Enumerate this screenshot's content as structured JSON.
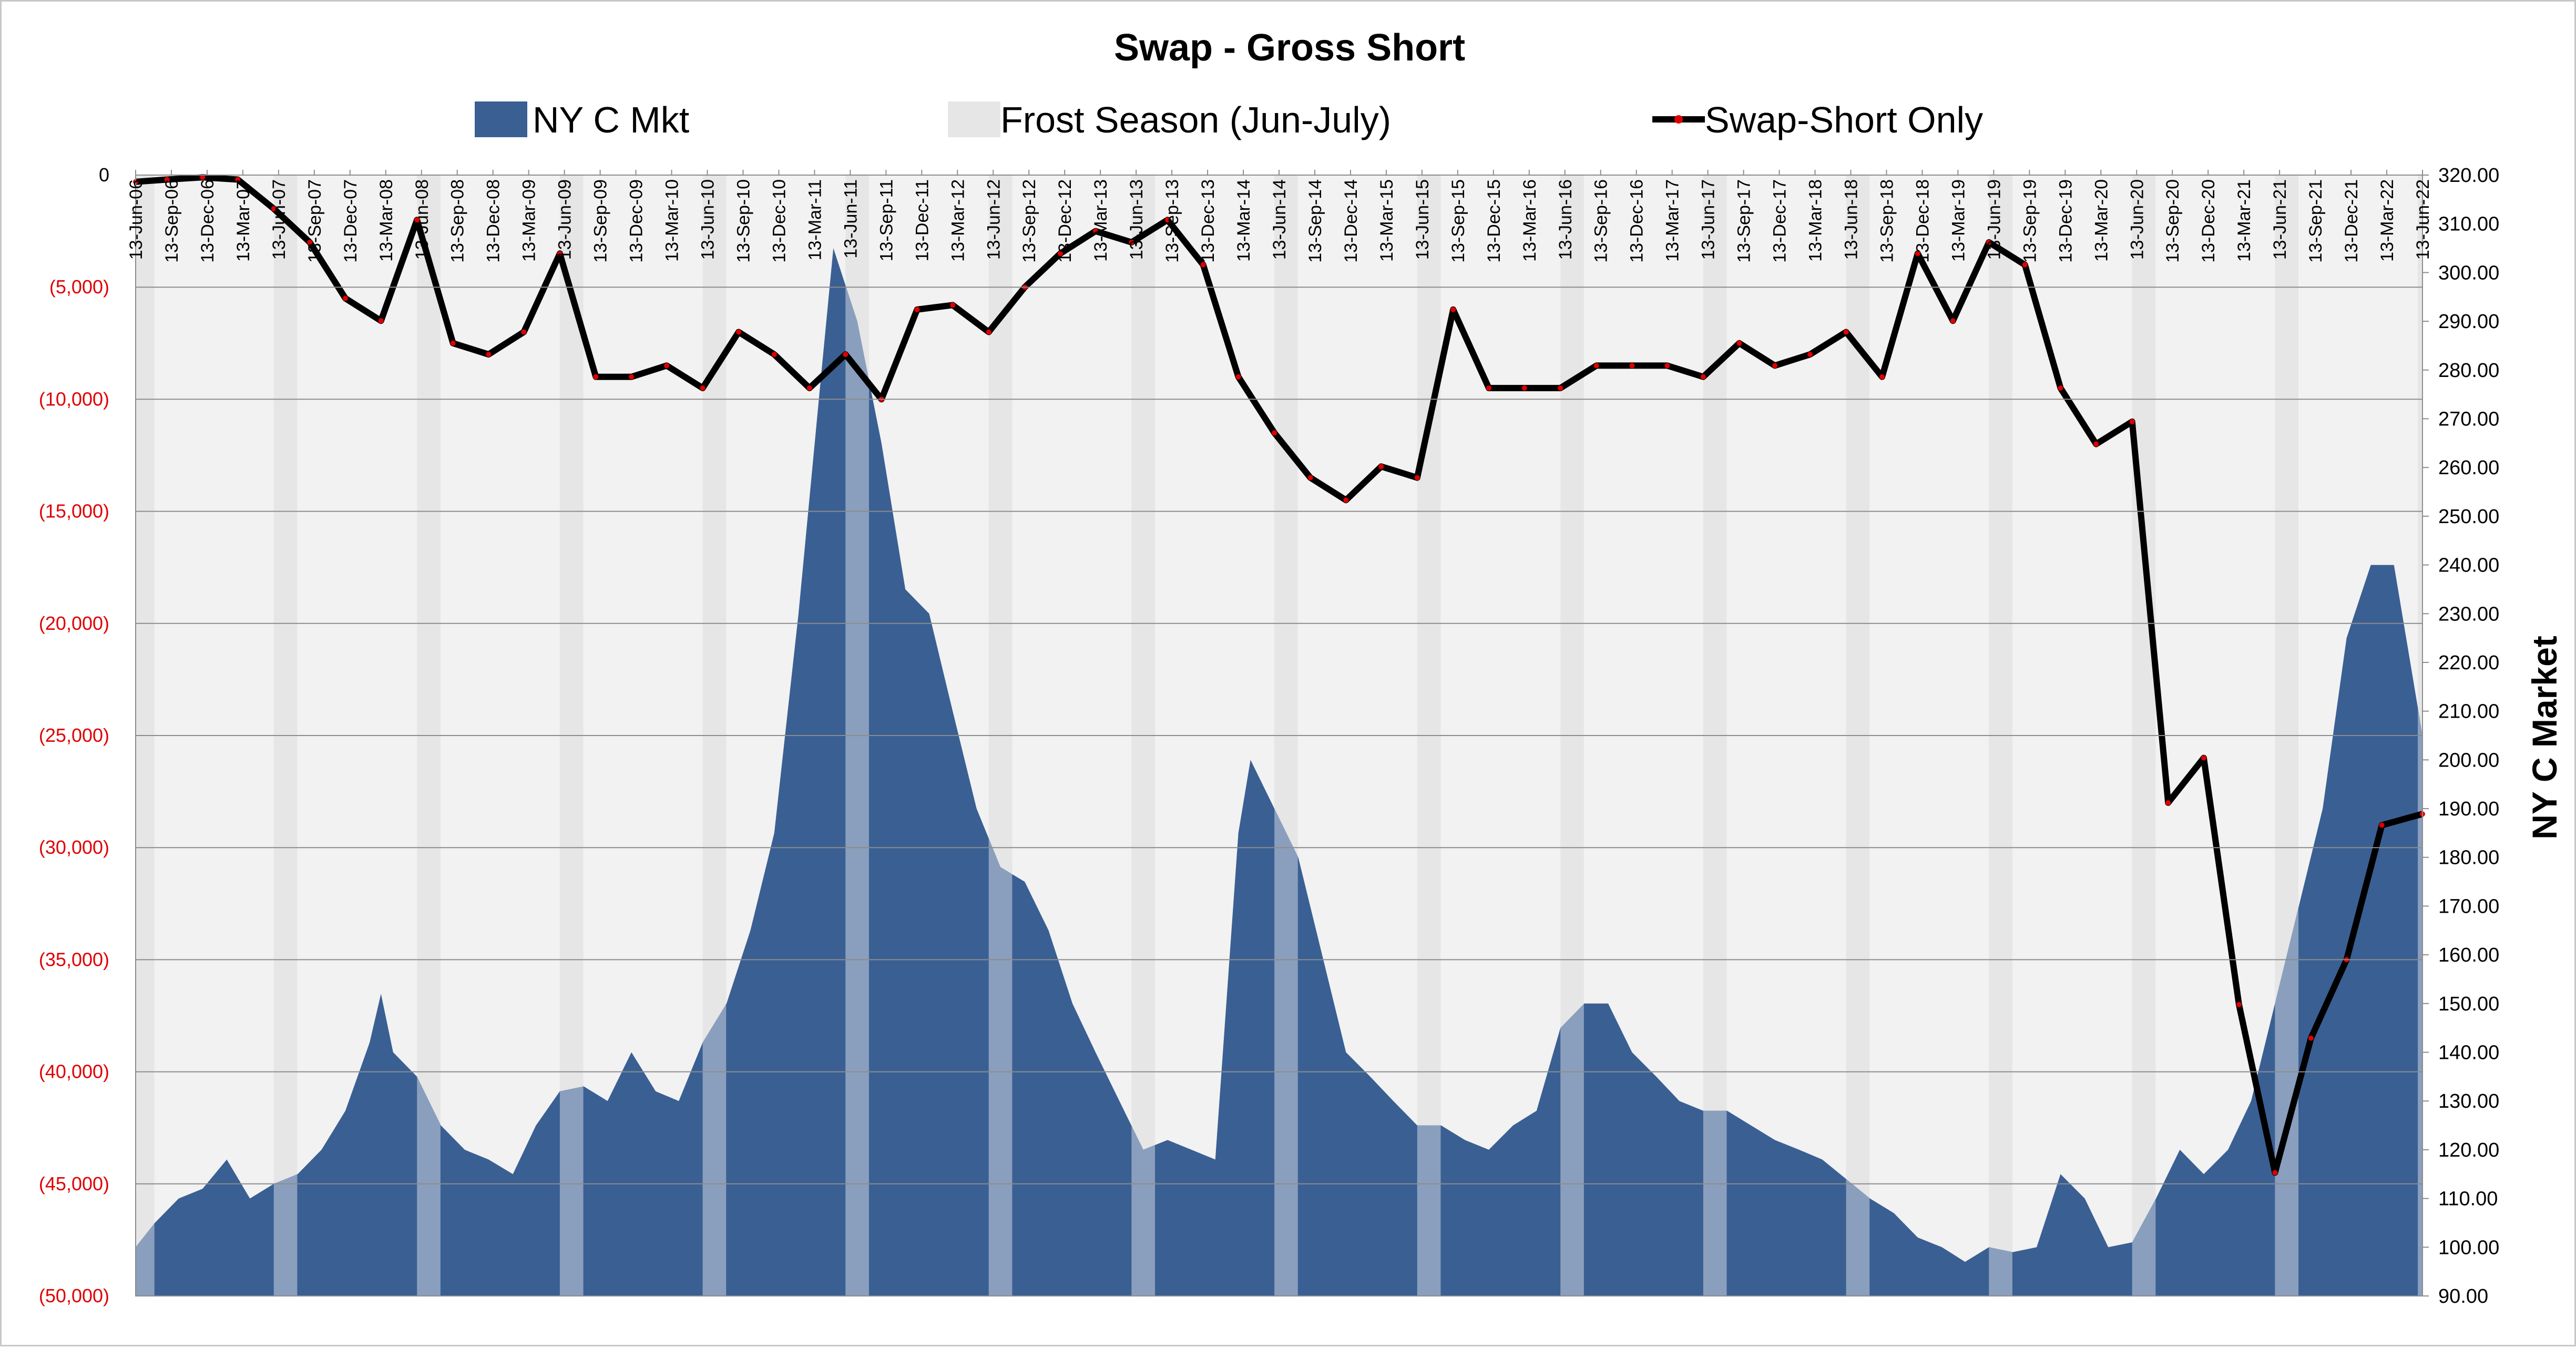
{
  "chart_data": {
    "type": "area",
    "title": "Swap - Gross Short",
    "xlabel": "",
    "ylabel_left": "",
    "ylabel_right": "NY C Market",
    "legend_position": "top",
    "legend": [
      "NY C Mkt",
      "Frost Season (Jun-July)",
      "Swap-Short Only"
    ],
    "colors": {
      "market_area": "#3a5f93",
      "market_area_frost": "#8a9fbd",
      "frost_band": "#e6e6e6",
      "plot_bg": "#f2f2f2",
      "swap_line": "#000000",
      "swap_markers": "#e00000",
      "left_tick_labels": "#e00000"
    },
    "y_left": {
      "min": -50000,
      "max": 0,
      "ticks": [
        0,
        -5000,
        -10000,
        -15000,
        -20000,
        -25000,
        -30000,
        -35000,
        -40000,
        -45000,
        -50000
      ],
      "tick_labels": [
        "0",
        "(5,000)",
        "(10,000)",
        "(15,000)",
        "(20,000)",
        "(25,000)",
        "(30,000)",
        "(35,000)",
        "(40,000)",
        "(45,000)",
        "(50,000)"
      ]
    },
    "y_right": {
      "min": 90,
      "max": 320,
      "ticks": [
        90,
        100,
        110,
        120,
        130,
        140,
        150,
        160,
        170,
        180,
        190,
        200,
        210,
        220,
        230,
        240,
        250,
        260,
        270,
        280,
        290,
        300,
        310,
        320
      ],
      "tick_labels": [
        "90.00",
        "100.00",
        "110.00",
        "120.00",
        "130.00",
        "140.00",
        "150.00",
        "160.00",
        "170.00",
        "180.00",
        "190.00",
        "200.00",
        "210.00",
        "220.00",
        "230.00",
        "240.00",
        "250.00",
        "260.00",
        "270.00",
        "280.00",
        "290.00",
        "300.00",
        "310.00",
        "320.00"
      ]
    },
    "x": {
      "start": "2006-06-13",
      "end": "2022-06-13",
      "tick_labels": [
        "13-Jun-06",
        "13-Sep-06",
        "13-Dec-06",
        "13-Mar-07",
        "13-Jun-07",
        "13-Sep-07",
        "13-Dec-07",
        "13-Mar-08",
        "13-Jun-08",
        "13-Sep-08",
        "13-Dec-08",
        "13-Mar-09",
        "13-Jun-09",
        "13-Sep-09",
        "13-Dec-09",
        "13-Mar-10",
        "13-Jun-10",
        "13-Sep-10",
        "13-Dec-10",
        "13-Mar-11",
        "13-Jun-11",
        "13-Sep-11",
        "13-Dec-11",
        "13-Mar-12",
        "13-Jun-12",
        "13-Sep-12",
        "13-Dec-12",
        "13-Mar-13",
        "13-Jun-13",
        "13-Sep-13",
        "13-Dec-13",
        "13-Mar-14",
        "13-Jun-14",
        "13-Sep-14",
        "13-Dec-14",
        "13-Mar-15",
        "13-Jun-15",
        "13-Sep-15",
        "13-Dec-15",
        "13-Mar-16",
        "13-Jun-16",
        "13-Sep-16",
        "13-Dec-16",
        "13-Mar-17",
        "13-Jun-17",
        "13-Sep-17",
        "13-Dec-17",
        "13-Mar-18",
        "13-Jun-18",
        "13-Sep-18",
        "13-Dec-18",
        "13-Mar-19",
        "13-Jun-19",
        "13-Sep-19",
        "13-Dec-19",
        "13-Mar-20",
        "13-Jun-20",
        "13-Sep-20",
        "13-Dec-20",
        "13-Mar-21",
        "13-Jun-21",
        "13-Sep-21",
        "13-Dec-21",
        "13-Mar-22",
        "13-Jun-22"
      ]
    },
    "frost_seasons": [
      [
        "2006-06-01",
        "2006-07-31"
      ],
      [
        "2007-06-01",
        "2007-07-31"
      ],
      [
        "2008-06-01",
        "2008-07-31"
      ],
      [
        "2009-06-01",
        "2009-07-31"
      ],
      [
        "2010-06-01",
        "2010-07-31"
      ],
      [
        "2011-06-01",
        "2011-07-31"
      ],
      [
        "2012-06-01",
        "2012-07-31"
      ],
      [
        "2013-06-01",
        "2013-07-31"
      ],
      [
        "2014-06-01",
        "2014-07-31"
      ],
      [
        "2015-06-01",
        "2015-07-31"
      ],
      [
        "2016-06-01",
        "2016-07-31"
      ],
      [
        "2017-06-01",
        "2017-07-31"
      ],
      [
        "2018-06-01",
        "2018-07-31"
      ],
      [
        "2019-06-01",
        "2019-07-31"
      ],
      [
        "2020-06-01",
        "2020-07-31"
      ],
      [
        "2021-06-01",
        "2021-07-31"
      ],
      [
        "2022-06-01",
        "2022-06-13"
      ]
    ],
    "series": [
      {
        "name": "NY C Mkt",
        "axis": "right",
        "type": "area",
        "x": [
          "2006-06-13",
          "2006-08-01",
          "2006-10-01",
          "2006-12-01",
          "2007-02-01",
          "2007-04-01",
          "2007-06-01",
          "2007-08-01",
          "2007-10-01",
          "2007-12-01",
          "2008-02-01",
          "2008-03-01",
          "2008-04-01",
          "2008-06-01",
          "2008-08-01",
          "2008-10-01",
          "2008-12-01",
          "2009-02-01",
          "2009-04-01",
          "2009-06-01",
          "2009-08-01",
          "2009-10-01",
          "2009-12-01",
          "2010-02-01",
          "2010-04-01",
          "2010-06-01",
          "2010-08-01",
          "2010-10-01",
          "2010-12-01",
          "2011-02-01",
          "2011-04-01",
          "2011-05-01",
          "2011-07-01",
          "2011-09-01",
          "2011-11-01",
          "2012-01-01",
          "2012-03-01",
          "2012-05-01",
          "2012-07-01",
          "2012-09-01",
          "2012-11-01",
          "2013-01-01",
          "2013-03-01",
          "2013-05-01",
          "2013-07-01",
          "2013-09-01",
          "2013-11-01",
          "2014-01-01",
          "2014-03-01",
          "2014-04-01",
          "2014-06-01",
          "2014-08-01",
          "2014-10-01",
          "2014-12-01",
          "2015-02-01",
          "2015-04-01",
          "2015-06-01",
          "2015-08-01",
          "2015-10-01",
          "2015-12-01",
          "2016-02-01",
          "2016-04-01",
          "2016-06-01",
          "2016-08-01",
          "2016-10-01",
          "2016-12-01",
          "2017-02-01",
          "2017-04-01",
          "2017-06-01",
          "2017-08-01",
          "2017-10-01",
          "2017-12-01",
          "2018-02-01",
          "2018-04-01",
          "2018-06-01",
          "2018-08-01",
          "2018-10-01",
          "2018-12-01",
          "2019-02-01",
          "2019-04-01",
          "2019-06-01",
          "2019-08-01",
          "2019-10-01",
          "2019-12-01",
          "2020-02-01",
          "2020-04-01",
          "2020-06-01",
          "2020-08-01",
          "2020-10-01",
          "2020-12-01",
          "2021-02-01",
          "2021-04-01",
          "2021-06-01",
          "2021-08-01",
          "2021-10-01",
          "2021-12-01",
          "2022-02-01",
          "2022-04-01",
          "2022-06-13"
        ],
        "values": [
          100,
          105,
          110,
          112,
          118,
          110,
          113,
          115,
          120,
          128,
          142,
          152,
          140,
          135,
          125,
          120,
          118,
          115,
          125,
          132,
          133,
          130,
          140,
          132,
          130,
          142,
          150,
          165,
          185,
          230,
          280,
          305,
          290,
          265,
          235,
          230,
          210,
          190,
          178,
          175,
          165,
          150,
          140,
          130,
          120,
          122,
          120,
          118,
          185,
          200,
          190,
          180,
          160,
          140,
          135,
          130,
          125,
          125,
          122,
          120,
          125,
          128,
          145,
          150,
          150,
          140,
          135,
          130,
          128,
          128,
          125,
          122,
          120,
          118,
          114,
          110,
          107,
          102,
          100,
          97,
          100,
          99,
          100,
          115,
          110,
          100,
          101,
          110,
          120,
          115,
          120,
          130,
          150,
          170,
          190,
          225,
          240,
          240,
          205
        ]
      },
      {
        "name": "Swap-Short Only",
        "axis": "left",
        "type": "line",
        "x": [
          "2006-06-13",
          "2006-09-01",
          "2006-12-01",
          "2007-03-01",
          "2007-06-01",
          "2007-09-01",
          "2007-12-01",
          "2008-03-01",
          "2008-06-01",
          "2008-09-01",
          "2008-12-01",
          "2009-03-01",
          "2009-06-01",
          "2009-09-01",
          "2009-12-01",
          "2010-03-01",
          "2010-06-01",
          "2010-09-01",
          "2010-12-01",
          "2011-03-01",
          "2011-06-01",
          "2011-09-01",
          "2011-12-01",
          "2012-03-01",
          "2012-06-01",
          "2012-09-01",
          "2012-12-01",
          "2013-03-01",
          "2013-06-01",
          "2013-09-01",
          "2013-12-01",
          "2014-03-01",
          "2014-06-01",
          "2014-09-01",
          "2014-12-01",
          "2015-03-01",
          "2015-06-01",
          "2015-09-01",
          "2015-12-01",
          "2016-03-01",
          "2016-06-01",
          "2016-09-01",
          "2016-12-01",
          "2017-03-01",
          "2017-06-01",
          "2017-09-01",
          "2017-12-01",
          "2018-03-01",
          "2018-06-01",
          "2018-09-01",
          "2018-12-01",
          "2019-03-01",
          "2019-06-01",
          "2019-09-01",
          "2019-12-01",
          "2020-03-01",
          "2020-06-01",
          "2020-09-01",
          "2020-12-01",
          "2021-03-01",
          "2021-06-01",
          "2021-09-01",
          "2021-12-01",
          "2022-03-01",
          "2022-06-13"
        ],
        "values": [
          -300,
          -200,
          -100,
          -200,
          -1500,
          -3000,
          -5500,
          -6500,
          -2000,
          -7500,
          -8000,
          -7000,
          -3500,
          -9000,
          -9000,
          -8500,
          -9500,
          -7000,
          -8000,
          -9500,
          -8000,
          -10000,
          -6000,
          -5800,
          -7000,
          -5000,
          -3500,
          -2500,
          -3000,
          -2000,
          -4000,
          -9000,
          -11500,
          -13500,
          -14500,
          -13000,
          -13500,
          -6000,
          -9500,
          -9500,
          -9500,
          -8500,
          -8500,
          -8500,
          -9000,
          -7500,
          -8500,
          -8000,
          -7000,
          -9000,
          -3500,
          -6500,
          -3000,
          -4000,
          -9500,
          -12000,
          -11000,
          -28000,
          -26000,
          -37000,
          -44500,
          -38500,
          -35000,
          -29000,
          -28500
        ]
      }
    ]
  }
}
